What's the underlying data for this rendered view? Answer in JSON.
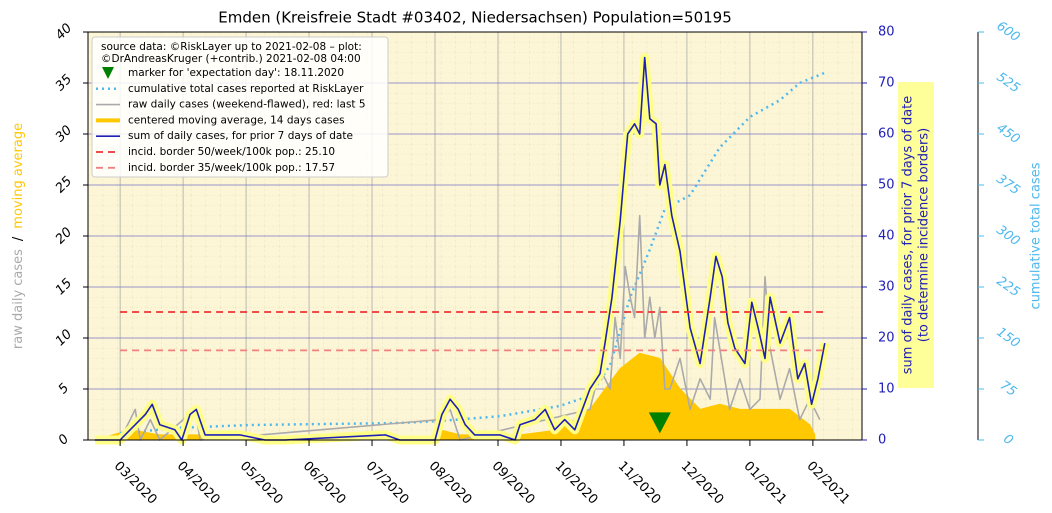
{
  "chart_data": {
    "type": "line",
    "title": "Emden (Kreisfreie Stadt #03402, Niedersachsen) Population=50195",
    "y_label_parts": [
      {
        "text": "raw daily cases",
        "color": "#aaaaaa"
      },
      {
        "text": "/",
        "color": "#000000"
      },
      {
        "text": "moving average",
        "color": "#ffc800"
      }
    ],
    "y2_label": [
      "sum of daily cases, for prior 7 days of date",
      "(to determine incidence borders)"
    ],
    "y2_label_color": "#2020b8",
    "y3_label": "cumulative total cases",
    "y3_label_color": "#4db8ee",
    "legend_title": [
      "source data: ©RiskLayer up to 2021-02-08 – plot:",
      "©DrAndreasKruger (+contrib.) 2021-02-08 04:00"
    ],
    "legend": "upper left",
    "grid": true,
    "xlim": [
      1.49,
      13.78
    ],
    "xticks": [
      {
        "value": 2,
        "label": "03/2020"
      },
      {
        "value": 3,
        "label": "04/2020"
      },
      {
        "value": 4,
        "label": "05/2020"
      },
      {
        "value": 5,
        "label": "06/2020"
      },
      {
        "value": 6,
        "label": "07/2020"
      },
      {
        "value": 7,
        "label": "08/2020"
      },
      {
        "value": 8,
        "label": "09/2020"
      },
      {
        "value": 9,
        "label": "10/2020"
      },
      {
        "value": 10,
        "label": "11/2020"
      },
      {
        "value": 11,
        "label": "12/2020"
      },
      {
        "value": 12,
        "label": "01/2021"
      },
      {
        "value": 13,
        "label": "02/2021"
      }
    ],
    "ylim": [
      0,
      40
    ],
    "yticks": [
      0,
      5,
      10,
      15,
      20,
      25,
      30,
      35,
      40
    ],
    "y2lim": [
      0,
      80
    ],
    "y2ticks": [
      0,
      10,
      20,
      30,
      40,
      50,
      60,
      70,
      80
    ],
    "y3lim": [
      0,
      600
    ],
    "y3ticks": [
      0,
      75,
      150,
      225,
      300,
      375,
      450,
      525,
      600
    ],
    "marker": {
      "name": "marker for 'expectation day': 18.11.2020",
      "color": "#008000",
      "x": 10.57,
      "y": 1.5,
      "axis": "y2"
    },
    "series": [
      {
        "name": "cumulative total cases reported at RiskLayer",
        "color": "#4db8ee",
        "style": "dotted",
        "axis": "y3",
        "x": [
          2.0,
          2.95,
          4.06,
          6.44,
          7.08,
          8.03,
          8.98,
          9.46,
          9.78,
          10.1,
          10.41,
          10.65,
          11.05,
          11.52,
          12.0,
          12.48,
          12.79,
          13.19
        ],
        "values": [
          10,
          18,
          22,
          25,
          28,
          35,
          50,
          65,
          110,
          210,
          280,
          340,
          360,
          430,
          475,
          500,
          525,
          540
        ]
      },
      {
        "name": "raw daily cases (weekend-flawed), red: last 5",
        "color": "#aaaaaa",
        "style": "line",
        "axis": "y",
        "x": [
          2.0,
          2.24,
          2.32,
          2.48,
          2.63,
          3.19,
          3.27,
          7.08,
          7.24,
          7.4,
          9.46,
          9.62,
          9.78,
          9.86,
          9.94,
          10.02,
          10.1,
          10.17,
          10.25,
          10.33,
          10.41,
          10.49,
          10.57,
          10.65,
          10.73,
          10.89,
          11.05,
          11.21,
          11.37,
          11.44,
          11.52,
          11.68,
          11.84,
          12.0,
          12.16,
          12.24,
          12.32,
          12.48,
          12.63,
          12.79,
          12.95,
          13.11
        ],
        "values": [
          0,
          3,
          0,
          2,
          0,
          3,
          0,
          2,
          3,
          0,
          3,
          7,
          5,
          12,
          8,
          17,
          14,
          12,
          22,
          10,
          14,
          10,
          13,
          5,
          5,
          8,
          3,
          6,
          4,
          12,
          9,
          3,
          6,
          3,
          4,
          16,
          9,
          4,
          7,
          2,
          4,
          2
        ]
      },
      {
        "name": "centered moving average, 14 days cases",
        "color": "#ffc800",
        "style": "area",
        "axis": "y",
        "x": [
          1.6,
          2.16,
          2.63,
          3.27,
          3.75,
          6.92,
          7.08,
          7.4,
          8.35,
          8.98,
          9.46,
          9.94,
          10.25,
          10.57,
          10.89,
          11.21,
          11.52,
          11.84,
          12.16,
          12.63,
          12.95,
          13.03
        ],
        "values": [
          0,
          1,
          0.5,
          0.5,
          0,
          0,
          1,
          0.5,
          0.5,
          1,
          3,
          7,
          8.5,
          8,
          5,
          3,
          3.5,
          3,
          3,
          3,
          1.5,
          0.5
        ]
      },
      {
        "name": "sum of daily cases, for prior 7 days of date",
        "color": "#2020b8",
        "halo": "#ffff88",
        "style": "line",
        "axis": "y2",
        "x": [
          1.6,
          2.0,
          2.24,
          2.4,
          2.51,
          2.63,
          2.87,
          2.98,
          3.11,
          3.21,
          3.35,
          3.51,
          3.9,
          4.3,
          4.62,
          6.21,
          6.44,
          7.0,
          7.11,
          7.24,
          7.37,
          7.48,
          7.63,
          8.03,
          8.27,
          8.35,
          8.59,
          8.75,
          8.9,
          9.06,
          9.22,
          9.46,
          9.62,
          9.7,
          9.81,
          9.94,
          10.06,
          10.17,
          10.25,
          10.33,
          10.41,
          10.51,
          10.57,
          10.65,
          10.76,
          10.89,
          11.05,
          11.21,
          11.37,
          11.46,
          11.56,
          11.65,
          11.76,
          11.92,
          12.03,
          12.13,
          12.24,
          12.32,
          12.48,
          12.63,
          12.76,
          12.87,
          12.98,
          13.08,
          13.19
        ],
        "values": [
          0,
          0,
          3,
          5,
          7,
          3,
          2,
          0,
          5,
          6,
          1,
          1,
          1,
          0,
          0,
          1,
          0,
          0,
          5,
          8,
          6,
          3,
          1,
          1,
          0,
          3,
          4,
          6,
          2,
          4,
          2,
          10,
          13,
          19,
          28,
          43,
          60,
          62,
          60,
          75,
          63,
          62,
          50,
          54,
          44,
          37,
          22,
          15,
          28,
          36,
          32,
          23,
          18,
          15,
          27,
          22,
          16,
          28,
          19,
          24,
          12,
          15,
          7,
          12,
          19
        ]
      },
      {
        "name": "incid. border 50/week/100k pop.: 25.10",
        "color": "#ee3333",
        "style": "dashed",
        "axis": "y2",
        "x": [
          2.0,
          13.19
        ],
        "values": [
          25.1,
          25.1
        ]
      },
      {
        "name": "incid. border 35/week/100k pop.: 17.57",
        "color": "#f08080",
        "style": "dashed",
        "axis": "y2",
        "x": [
          2.0,
          13.19
        ],
        "values": [
          17.57,
          17.57
        ]
      }
    ]
  }
}
